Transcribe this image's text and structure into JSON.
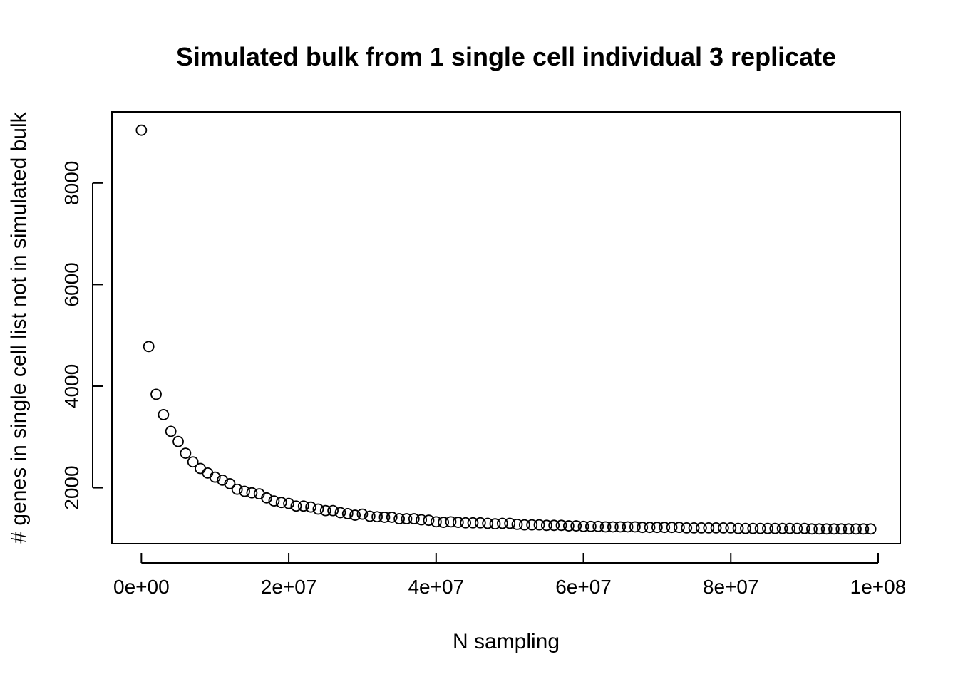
{
  "chart_data": {
    "type": "scatter",
    "title": "Simulated bulk from 1 single cell individual 3 replicate",
    "xlabel": "N sampling",
    "ylabel": "# genes in single cell list not in simulated bulk",
    "xlim": [
      -4000000,
      103000000
    ],
    "ylim": [
      900,
      9400
    ],
    "x_ticks": [
      0,
      20000000,
      40000000,
      60000000,
      80000000,
      100000000
    ],
    "x_tick_labels": [
      "0e+00",
      "2e+07",
      "4e+07",
      "6e+07",
      "8e+07",
      "1e+08"
    ],
    "y_ticks": [
      2000,
      4000,
      6000,
      8000
    ],
    "y_tick_labels": [
      "2000",
      "4000",
      "6000",
      "8000"
    ],
    "grid": false,
    "marker": "open-circle",
    "x": [
      0,
      1000000,
      2000000,
      3000000,
      4000000,
      5000000,
      6000000,
      7000000,
      8000000,
      9000000,
      10000000,
      11000000,
      12000000,
      13000000,
      14000000,
      15000000,
      16000000,
      17000000,
      18000000,
      19000000,
      20000000,
      21000000,
      22000000,
      23000000,
      24000000,
      25000000,
      26000000,
      27000000,
      28000000,
      29000000,
      30000000,
      31000000,
      32000000,
      33000000,
      34000000,
      35000000,
      36000000,
      37000000,
      38000000,
      39000000,
      40000000,
      41000000,
      42000000,
      43000000,
      44000000,
      45000000,
      46000000,
      47000000,
      48000000,
      49000000,
      50000000,
      51000000,
      52000000,
      53000000,
      54000000,
      55000000,
      56000000,
      57000000,
      58000000,
      59000000,
      60000000,
      61000000,
      62000000,
      63000000,
      64000000,
      65000000,
      66000000,
      67000000,
      68000000,
      69000000,
      70000000,
      71000000,
      72000000,
      73000000,
      74000000,
      75000000,
      76000000,
      77000000,
      78000000,
      79000000,
      80000000,
      81000000,
      82000000,
      83000000,
      84000000,
      85000000,
      86000000,
      87000000,
      88000000,
      89000000,
      90000000,
      91000000,
      92000000,
      93000000,
      94000000,
      95000000,
      96000000,
      97000000,
      98000000,
      99000000
    ],
    "y": [
      9040,
      4780,
      3840,
      3440,
      3110,
      2910,
      2680,
      2510,
      2380,
      2290,
      2210,
      2150,
      2080,
      1970,
      1930,
      1900,
      1880,
      1800,
      1740,
      1710,
      1690,
      1640,
      1640,
      1620,
      1580,
      1550,
      1550,
      1510,
      1490,
      1460,
      1480,
      1440,
      1430,
      1420,
      1420,
      1390,
      1390,
      1390,
      1370,
      1360,
      1330,
      1320,
      1330,
      1320,
      1310,
      1310,
      1310,
      1300,
      1290,
      1300,
      1300,
      1280,
      1270,
      1270,
      1270,
      1260,
      1260,
      1260,
      1250,
      1250,
      1240,
      1240,
      1240,
      1230,
      1230,
      1230,
      1230,
      1230,
      1220,
      1220,
      1220,
      1220,
      1220,
      1220,
      1210,
      1210,
      1210,
      1210,
      1210,
      1210,
      1210,
      1200,
      1200,
      1200,
      1200,
      1200,
      1200,
      1200,
      1200,
      1200,
      1200,
      1190,
      1190,
      1190,
      1190,
      1190,
      1190,
      1190,
      1190,
      1190
    ]
  }
}
